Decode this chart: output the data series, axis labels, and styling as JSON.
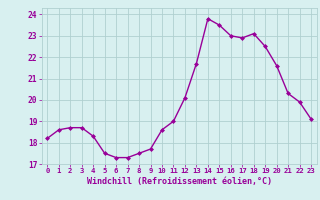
{
  "x": [
    0,
    1,
    2,
    3,
    4,
    5,
    6,
    7,
    8,
    9,
    10,
    11,
    12,
    13,
    14,
    15,
    16,
    17,
    18,
    19,
    20,
    21,
    22,
    23
  ],
  "y": [
    18.2,
    18.6,
    18.7,
    18.7,
    18.3,
    17.5,
    17.3,
    17.3,
    17.5,
    17.7,
    18.6,
    19.0,
    20.1,
    21.7,
    23.8,
    23.5,
    23.0,
    22.9,
    23.1,
    22.5,
    21.6,
    20.3,
    19.9,
    19.1
  ],
  "xlim": [
    -0.5,
    23.5
  ],
  "ylim": [
    17.0,
    24.3
  ],
  "yticks": [
    17,
    18,
    19,
    20,
    21,
    22,
    23,
    24
  ],
  "xticks": [
    0,
    1,
    2,
    3,
    4,
    5,
    6,
    7,
    8,
    9,
    10,
    11,
    12,
    13,
    14,
    15,
    16,
    17,
    18,
    19,
    20,
    21,
    22,
    23
  ],
  "xlabel": "Windchill (Refroidissement éolien,°C)",
  "line_color": "#990099",
  "marker": "D",
  "marker_size": 2.0,
  "bg_color": "#d8f0f0",
  "grid_color": "#b0d0d0",
  "tick_color": "#990099",
  "label_color": "#990099",
  "line_width": 1.0,
  "tick_fontsize": 5.2,
  "xlabel_fontsize": 6.0
}
